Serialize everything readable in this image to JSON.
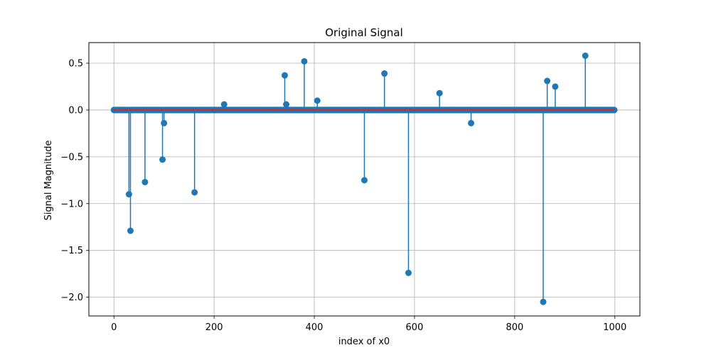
{
  "chart_data": {
    "type": "stem",
    "title": "Original Signal",
    "xlabel": "index of x0",
    "ylabel": "Signal Magnitude",
    "xlim": [
      -50,
      1050
    ],
    "ylim": [
      -2.2,
      0.72
    ],
    "x_ticks": [
      0,
      200,
      400,
      600,
      800,
      1000
    ],
    "y_ticks": [
      -2.0,
      -1.5,
      -1.0,
      -0.5,
      0.0,
      0.5
    ],
    "x_tick_labels": [
      "0",
      "200",
      "400",
      "600",
      "800",
      "1000"
    ],
    "y_tick_labels": [
      "−2.0",
      "−1.5",
      "−1.0",
      "−0.5",
      "0.0",
      "0.5"
    ],
    "grid": true,
    "series_length": 1000,
    "baseline": 0,
    "nonzero_points": [
      {
        "x": 30,
        "y": -0.9
      },
      {
        "x": 33,
        "y": -1.29
      },
      {
        "x": 62,
        "y": -0.77
      },
      {
        "x": 97,
        "y": -0.53
      },
      {
        "x": 100,
        "y": -0.14
      },
      {
        "x": 161,
        "y": -0.88
      },
      {
        "x": 220,
        "y": 0.06
      },
      {
        "x": 341,
        "y": 0.37
      },
      {
        "x": 344,
        "y": 0.06
      },
      {
        "x": 380,
        "y": 0.52
      },
      {
        "x": 406,
        "y": 0.1
      },
      {
        "x": 500,
        "y": -0.75
      },
      {
        "x": 540,
        "y": 0.39
      },
      {
        "x": 588,
        "y": -1.74
      },
      {
        "x": 650,
        "y": 0.18
      },
      {
        "x": 713,
        "y": -0.14
      },
      {
        "x": 857,
        "y": -2.05
      },
      {
        "x": 865,
        "y": 0.31
      },
      {
        "x": 881,
        "y": 0.25
      },
      {
        "x": 941,
        "y": 0.58
      }
    ],
    "colors": {
      "stem": "#1f77b4",
      "marker": "#1f77b4",
      "baseline": "#d62728",
      "grid": "#b0b0b0"
    }
  }
}
